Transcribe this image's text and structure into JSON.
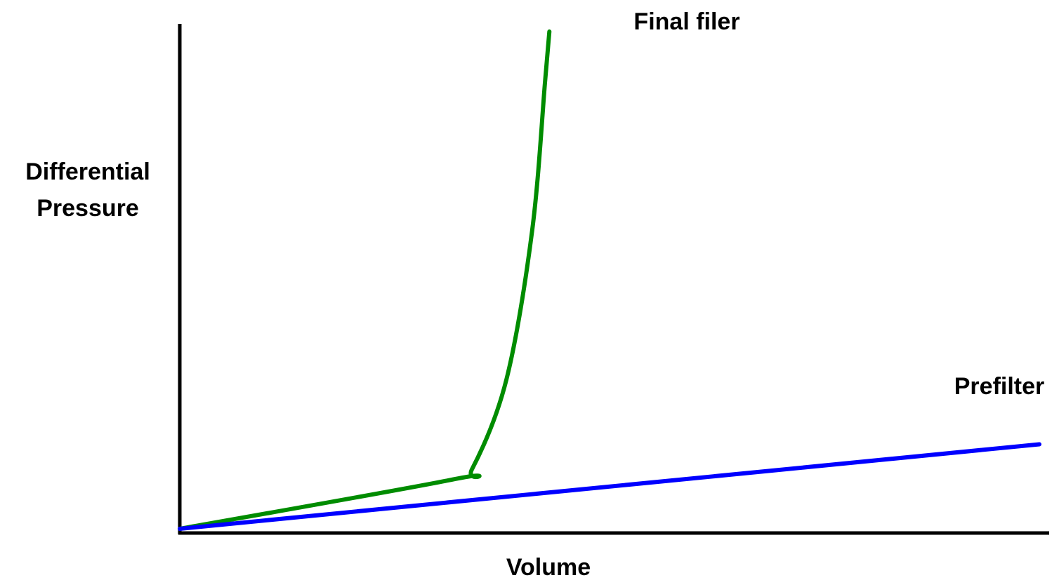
{
  "chart_data": {
    "type": "line",
    "title": "",
    "xlabel": "Volume",
    "ylabel_lines": [
      "Differential",
      "Pressure"
    ],
    "axes_ticks": false,
    "grid": false,
    "legend": "none — series labeled directly at line ends",
    "series": [
      {
        "name": "Final filer",
        "color": "#008c00",
        "points": [
          [
            0.0,
            0.0
          ],
          [
            0.32,
            0.1
          ],
          [
            0.34,
            0.12
          ],
          [
            0.38,
            0.3
          ],
          [
            0.41,
            0.6
          ],
          [
            0.425,
            0.9
          ],
          [
            0.43,
            1.0
          ]
        ]
      },
      {
        "name": "Prefilter",
        "color": "#0000ff",
        "points": [
          [
            0.0,
            0.0
          ],
          [
            1.0,
            0.17
          ]
        ]
      }
    ]
  }
}
